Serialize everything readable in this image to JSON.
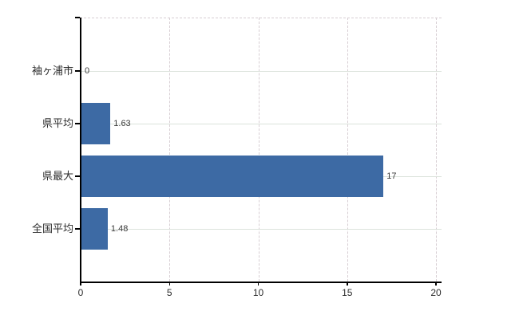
{
  "chart_data": {
    "type": "bar",
    "orientation": "horizontal",
    "title": "",
    "xlabel": "",
    "ylabel": "",
    "categories": [
      "袖ヶ浦市",
      "県平均",
      "県最大",
      "全国平均"
    ],
    "values": [
      0,
      1.63,
      17,
      1.48
    ],
    "value_labels": [
      "0",
      "1.63",
      "17",
      "1.48"
    ],
    "xticks": [
      0,
      5,
      10,
      15,
      20
    ],
    "xtick_labels": [
      "0",
      "5",
      "10",
      "15",
      "20"
    ],
    "xlim": [
      0,
      20.3
    ],
    "grid": "horizontal solid lines at each category, vertical dashed lines at x ticks, dashed top border",
    "legend": "none",
    "colors": {
      "bar": "#3d6aa4",
      "axis": "#000000",
      "text": "#2d2d2d",
      "value_text": "#3a3a3a",
      "hgrid": "#dce3dc",
      "vgrid_dashed": "#d7ced3",
      "background": "#ffffff"
    }
  }
}
